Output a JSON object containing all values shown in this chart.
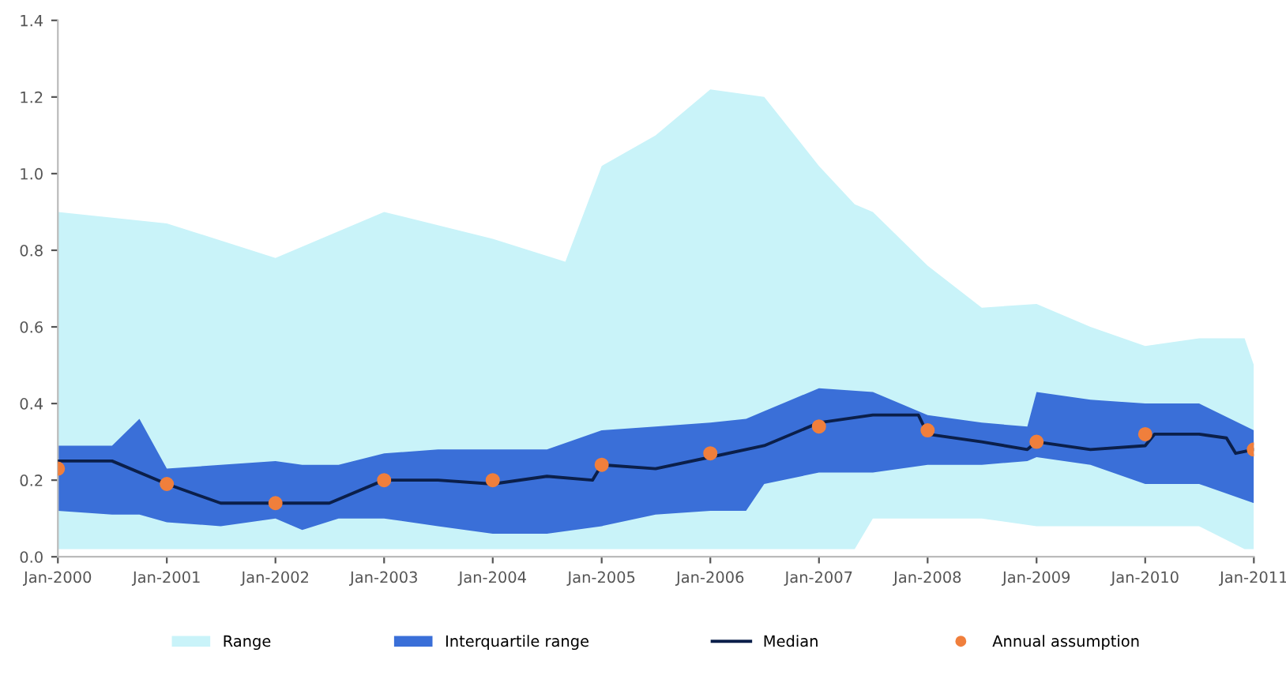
{
  "chart_data": {
    "type": "line",
    "xlim": [
      "2000-01",
      "2011-01"
    ],
    "xticks": [
      {
        "value": "2000-01",
        "label": "Jan-2000"
      },
      {
        "value": "2001-01",
        "label": "Jan-2001"
      },
      {
        "value": "2002-01",
        "label": "Jan-2002"
      },
      {
        "value": "2003-01",
        "label": "Jan-2003"
      },
      {
        "value": "2004-01",
        "label": "Jan-2004"
      },
      {
        "value": "2005-01",
        "label": "Jan-2005"
      },
      {
        "value": "2006-01",
        "label": "Jan-2006"
      },
      {
        "value": "2007-01",
        "label": "Jan-2007"
      },
      {
        "value": "2008-01",
        "label": "Jan-2008"
      },
      {
        "value": "2009-01",
        "label": "Jan-2009"
      },
      {
        "value": "2010-01",
        "label": "Jan-2010"
      },
      {
        "value": "2011-01",
        "label": "Jan-2011"
      }
    ],
    "ylim": [
      0,
      1.4
    ],
    "yticks": [
      {
        "value": 0,
        "label": "0.0"
      },
      {
        "value": 0.2,
        "label": "0.2"
      },
      {
        "value": 0.4,
        "label": "0.4"
      },
      {
        "value": 0.6,
        "label": "0.6"
      },
      {
        "value": 0.8,
        "label": "0.8"
      },
      {
        "value": 1.0,
        "label": "1.0"
      },
      {
        "value": 1.2,
        "label": "1.2"
      },
      {
        "value": 1.4,
        "label": "1.4"
      }
    ],
    "grid": false,
    "legend": "bottom",
    "series": [
      {
        "name": "Range",
        "type": "area",
        "color": "#c9f3f9",
        "x": [
          "2000-01",
          "2001-01",
          "2002-01",
          "2003-01",
          "2004-01",
          "2004-09",
          "2005-01",
          "2005-07",
          "2006-01",
          "2006-07",
          "2007-01",
          "2007-05",
          "2007-07",
          "2008-01",
          "2008-07",
          "2009-01",
          "2009-07",
          "2010-01",
          "2010-07",
          "2010-12",
          "2011-01"
        ],
        "lower": [
          0.02,
          0.02,
          0.02,
          0.02,
          0.02,
          0.02,
          0.02,
          0.02,
          0.02,
          0.02,
          0.02,
          0.02,
          0.1,
          0.1,
          0.1,
          0.08,
          0.08,
          0.08,
          0.08,
          0.02,
          0.02
        ],
        "upper": [
          0.9,
          0.87,
          0.78,
          0.9,
          0.83,
          0.77,
          1.02,
          1.1,
          1.22,
          1.2,
          1.02,
          0.92,
          0.9,
          0.76,
          0.65,
          0.66,
          0.6,
          0.55,
          0.57,
          0.57,
          0.5
        ],
        "values": [
          null,
          null,
          null,
          null,
          null,
          null,
          null,
          null,
          null,
          null,
          null,
          null,
          null,
          null,
          null,
          null,
          null,
          null,
          null,
          null,
          null
        ]
      },
      {
        "name": "Interquartile range",
        "type": "area",
        "color": "#3a6fd8",
        "x": [
          "2000-01",
          "2000-07",
          "2000-10",
          "2001-01",
          "2001-07",
          "2002-01",
          "2002-04",
          "2002-08",
          "2003-01",
          "2003-07",
          "2004-01",
          "2004-07",
          "2005-01",
          "2005-07",
          "2006-01",
          "2006-05",
          "2006-07",
          "2007-01",
          "2007-07",
          "2008-01",
          "2008-07",
          "2008-12",
          "2009-01",
          "2009-07",
          "2010-01",
          "2010-07",
          "2011-01"
        ],
        "lower": [
          0.12,
          0.11,
          0.11,
          0.09,
          0.08,
          0.1,
          0.07,
          0.1,
          0.1,
          0.08,
          0.06,
          0.06,
          0.08,
          0.11,
          0.12,
          0.12,
          0.19,
          0.22,
          0.22,
          0.24,
          0.24,
          0.25,
          0.26,
          0.24,
          0.19,
          0.19,
          0.14
        ],
        "upper": [
          0.29,
          0.29,
          0.36,
          0.23,
          0.24,
          0.25,
          0.24,
          0.24,
          0.27,
          0.28,
          0.28,
          0.28,
          0.33,
          0.34,
          0.35,
          0.36,
          0.38,
          0.44,
          0.43,
          0.37,
          0.35,
          0.34,
          0.43,
          0.41,
          0.4,
          0.4,
          0.33
        ],
        "values": [
          null,
          null,
          null,
          null,
          null,
          null,
          null,
          null,
          null,
          null,
          null,
          null,
          null,
          null,
          null,
          null,
          null,
          null,
          null,
          null,
          null,
          null,
          null,
          null,
          null,
          null,
          null
        ]
      },
      {
        "name": "Median",
        "color": "#0b1f4a",
        "x": [
          "2000-01",
          "2000-07",
          "2001-01",
          "2001-07",
          "2002-01",
          "2002-07",
          "2003-01",
          "2003-07",
          "2004-01",
          "2004-07",
          "2004-12",
          "2005-01",
          "2005-07",
          "2006-01",
          "2006-07",
          "2007-01",
          "2007-07",
          "2007-12",
          "2008-01",
          "2008-07",
          "2008-12",
          "2009-01",
          "2009-07",
          "2010-01",
          "2010-02",
          "2010-07",
          "2010-10",
          "2010-11",
          "2011-01"
        ],
        "values": [
          0.25,
          0.25,
          0.19,
          0.14,
          0.14,
          0.14,
          0.2,
          0.2,
          0.19,
          0.21,
          0.2,
          0.24,
          0.23,
          0.26,
          0.29,
          0.35,
          0.37,
          0.37,
          0.32,
          0.3,
          0.28,
          0.3,
          0.28,
          0.29,
          0.32,
          0.32,
          0.31,
          0.27,
          0.28
        ]
      },
      {
        "name": "Annual assumption",
        "type": "scatter",
        "color": "#f07f3c",
        "x": [
          "2000-01",
          "2001-01",
          "2002-01",
          "2003-01",
          "2004-01",
          "2005-01",
          "2006-01",
          "2007-01",
          "2008-01",
          "2009-01",
          "2010-01",
          "2011-01"
        ],
        "values": [
          0.23,
          0.19,
          0.14,
          0.2,
          0.2,
          0.24,
          0.27,
          0.34,
          0.33,
          0.3,
          0.32,
          0.28
        ]
      }
    ]
  }
}
